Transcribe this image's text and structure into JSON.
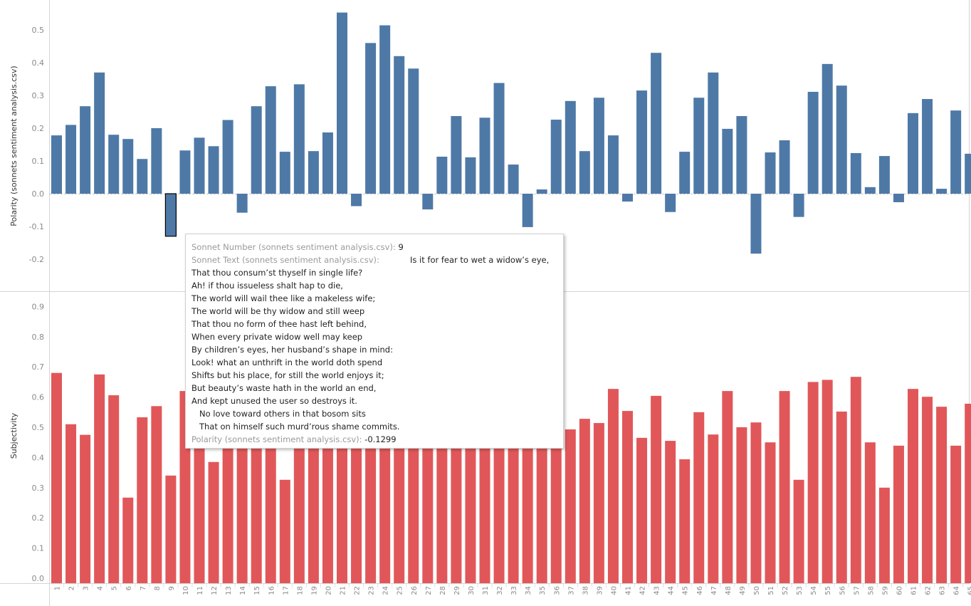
{
  "chart_data": [
    {
      "type": "bar",
      "title": "",
      "ylabel": "Polarity (sonnets sentiment analysis.csv)",
      "xlabel": "",
      "ylim": [
        -0.28,
        0.58
      ],
      "yticks": [
        "0.5",
        "0.4",
        "0.3",
        "0.2",
        "0.1",
        "0.0",
        "-0.1",
        "-0.2"
      ],
      "ytick_values": [
        0.5,
        0.4,
        0.3,
        0.2,
        0.1,
        0.0,
        -0.1,
        -0.2
      ],
      "grid": false,
      "zero_line": "dashed",
      "color": "#4e79a7",
      "highlighted_category": "9",
      "categories": [
        "1",
        "2",
        "3",
        "4",
        "5",
        "6",
        "7",
        "8",
        "9",
        "10",
        "11",
        "12",
        "13",
        "14",
        "15",
        "16",
        "17",
        "18",
        "19",
        "20",
        "21",
        "22",
        "23",
        "24",
        "25",
        "26",
        "27",
        "28",
        "29",
        "30",
        "31",
        "32",
        "33",
        "34",
        "35",
        "36",
        "37",
        "38",
        "39",
        "40",
        "41",
        "42",
        "43",
        "44",
        "45",
        "46",
        "47",
        "48",
        "49",
        "50",
        "51",
        "52",
        "53",
        "54",
        "55",
        "56",
        "57",
        "58",
        "59",
        "60",
        "61",
        "62",
        "63",
        "64",
        "65"
      ],
      "values": [
        0.178,
        0.21,
        0.267,
        0.37,
        0.18,
        0.167,
        0.106,
        0.2,
        -0.1299,
        0.132,
        0.171,
        0.145,
        0.225,
        -0.058,
        0.267,
        0.328,
        0.128,
        0.334,
        0.13,
        0.187,
        0.553,
        -0.038,
        0.46,
        0.514,
        0.42,
        0.382,
        -0.048,
        0.113,
        0.237,
        0.111,
        0.232,
        0.338,
        0.089,
        -0.102,
        0.013,
        0.226,
        0.283,
        0.13,
        0.293,
        0.178,
        -0.024,
        0.315,
        0.43,
        -0.056,
        0.128,
        0.293,
        0.37,
        0.198,
        0.237,
        -0.183,
        0.126,
        0.163,
        -0.071,
        0.311,
        0.396,
        0.33,
        0.124,
        0.02,
        0.115,
        -0.026,
        0.246,
        0.289,
        0.015,
        0.254,
        0.122
      ]
    },
    {
      "type": "bar",
      "title": "",
      "ylabel": "Subjectivity",
      "xlabel": "",
      "ylim": [
        0,
        0.95
      ],
      "yticks": [
        "0.9",
        "0.8",
        "0.7",
        "0.6",
        "0.5",
        "0.4",
        "0.3",
        "0.2",
        "0.1",
        "0.0"
      ],
      "ytick_values": [
        0.9,
        0.8,
        0.7,
        0.6,
        0.5,
        0.4,
        0.3,
        0.2,
        0.1,
        0.0
      ],
      "grid": false,
      "color": "#e15759",
      "categories": [
        "1",
        "2",
        "3",
        "4",
        "5",
        "6",
        "7",
        "8",
        "9",
        "10",
        "11",
        "12",
        "13",
        "14",
        "15",
        "16",
        "17",
        "18",
        "19",
        "20",
        "21",
        "22",
        "23",
        "24",
        "25",
        "26",
        "27",
        "28",
        "29",
        "30",
        "31",
        "32",
        "33",
        "34",
        "35",
        "36",
        "37",
        "38",
        "39",
        "40",
        "41",
        "42",
        "43",
        "44",
        "45",
        "46",
        "47",
        "48",
        "49",
        "50",
        "51",
        "52",
        "53",
        "54",
        "55",
        "56",
        "57",
        "58",
        "59",
        "60",
        "61",
        "62",
        "63",
        "64",
        "65"
      ],
      "values": [
        0.68,
        0.51,
        0.475,
        0.675,
        0.606,
        0.267,
        0.533,
        0.57,
        0.34,
        0.62,
        0.55,
        0.385,
        0.52,
        0.5,
        0.55,
        0.6,
        0.326,
        0.55,
        0.55,
        0.55,
        0.55,
        0.55,
        0.55,
        0.55,
        0.55,
        0.55,
        0.55,
        0.55,
        0.55,
        0.55,
        0.55,
        0.55,
        0.55,
        0.55,
        0.55,
        0.55,
        0.493,
        0.528,
        0.514,
        0.627,
        0.554,
        0.465,
        0.604,
        0.455,
        0.394,
        0.55,
        0.476,
        0.62,
        0.5,
        0.516,
        0.45,
        0.62,
        0.326,
        0.65,
        0.657,
        0.552,
        0.667,
        0.45,
        0.3,
        0.439,
        0.627,
        0.601,
        0.568,
        0.439,
        0.578
      ]
    }
  ],
  "tooltip": {
    "number_key": "Sonnet Number (sonnets sentiment analysis.csv):",
    "number_value": "9",
    "text_key": "Sonnet Text (sonnets sentiment analysis.csv):",
    "text_first_line": "Is it for fear to wet a widow’s eye,",
    "text_lines": [
      "That thou consum’st thyself in single life?",
      "Ah! if thou issueless shalt hap to die,",
      "The world will wail thee like a makeless wife;",
      "The world will be thy widow and still weep",
      "That thou no form of thee hast left behind,",
      "When every private widow well may keep",
      "By children’s eyes, her husband’s shape in mind:",
      "Look! what an unthrift in the world doth spend",
      "Shifts but his place, for still the world enjoys it;",
      "But beauty’s waste hath in the world an end,",
      "And kept unused the user so destroys it.",
      "   No love toward others in that bosom sits",
      "   That on himself such murd’rous shame commits."
    ],
    "polarity_key": "Polarity (sonnets sentiment analysis.csv):",
    "polarity_value": "-0.1299"
  }
}
